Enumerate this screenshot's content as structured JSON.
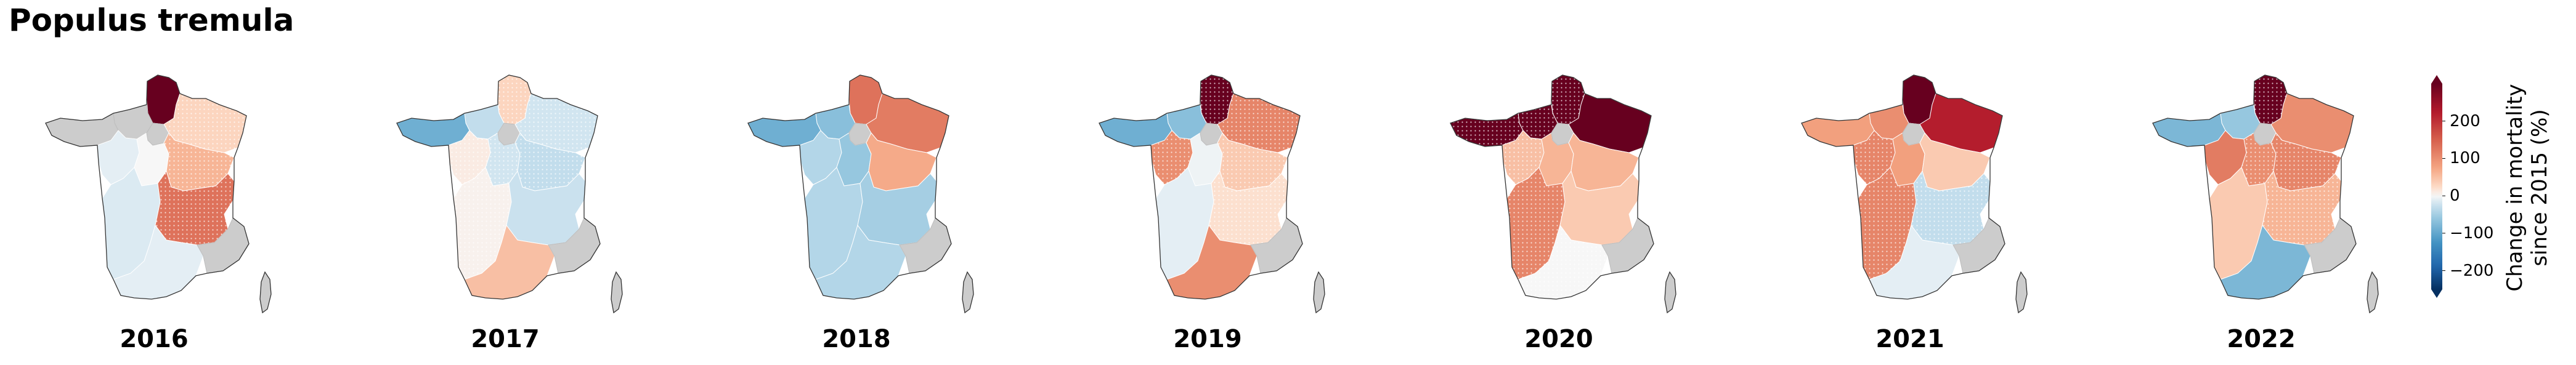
{
  "title": "Populus tremula",
  "colorscale": {
    "name": "RdBu_r",
    "label_line1": "Change in mortality",
    "label_line2": "since 2015 (%)",
    "min": -250,
    "max": 300,
    "ticks": [
      200,
      100,
      0,
      -100,
      -200
    ],
    "tick_labels": [
      "200",
      "100",
      "0",
      "−100",
      "−200"
    ],
    "extend": "both",
    "nodata_color": "#cccccc",
    "stipple_note": "dotted overlay on some regions"
  },
  "regions": [
    "NE-north",
    "North",
    "Normandy",
    "Brittany",
    "Pays de la Loire",
    "Centre",
    "Paris",
    "Grand Est",
    "Burgundy-FC",
    "Nouvelle-Aquitaine",
    "Auvergne-Rhone-Alpes",
    "Occitanie",
    "PACA",
    "Corsica"
  ],
  "maps": [
    {
      "year": "2016",
      "values": {
        "North": 300,
        "Normandy": null,
        "Brittany": null,
        "Pays de la Loire": -10,
        "Centre": 0,
        "Paris": null,
        "Grand Est": 30,
        "Burgundy-FC": 60,
        "Nouvelle-Aquitaine": -15,
        "Auvergne-Rhone-Alpes": 130,
        "Occitanie": -10,
        "PACA": null,
        "Corsica": null
      },
      "stippled": [
        "Grand Est",
        "Burgundy-FC",
        "Auvergne-Rhone-Alpes"
      ]
    },
    {
      "year": "2017",
      "values": {
        "North": 30,
        "Normandy": -30,
        "Brittany": -90,
        "Pays de la Loire": 10,
        "Centre": -20,
        "Paris": null,
        "Grand Est": -20,
        "Burgundy-FC": -30,
        "Nouvelle-Aquitaine": 5,
        "Auvergne-Rhone-Alpes": -25,
        "Occitanie": 50,
        "PACA": null,
        "Corsica": null
      },
      "stippled": [
        "North",
        "Pays de la Loire",
        "Centre",
        "Grand Est",
        "Burgundy-FC",
        "Nouvelle-Aquitaine"
      ]
    },
    {
      "year": "2018",
      "values": {
        "North": 130,
        "Normandy": -70,
        "Brittany": -90,
        "Pays de la Loire": -40,
        "Centre": -60,
        "Paris": null,
        "Grand Est": 120,
        "Burgundy-FC": 70,
        "Nouvelle-Aquitaine": -40,
        "Auvergne-Rhone-Alpes": -50,
        "Occitanie": -40,
        "PACA": null,
        "Corsica": null
      },
      "stippled": []
    },
    {
      "year": "2019",
      "values": {
        "North": 300,
        "Normandy": -70,
        "Brittany": -90,
        "Pays de la Loire": 100,
        "Centre": -5,
        "Paris": null,
        "Grand Est": 110,
        "Burgundy-FC": 40,
        "Nouvelle-Aquitaine": -10,
        "Auvergne-Rhone-Alpes": 20,
        "Occitanie": 100,
        "PACA": null,
        "Corsica": null
      },
      "stippled": [
        "North",
        "Pays de la Loire",
        "Grand Est",
        "Burgundy-FC",
        "Auvergne-Rhone-Alpes"
      ]
    },
    {
      "year": "2020",
      "values": {
        "North": 300,
        "Normandy": 300,
        "Brittany": 300,
        "Pays de la Loire": 50,
        "Centre": 60,
        "Paris": null,
        "Grand Est": 300,
        "Burgundy-FC": 60,
        "Nouvelle-Aquitaine": 110,
        "Auvergne-Rhone-Alpes": 40,
        "Occitanie": 0,
        "PACA": null,
        "Corsica": null
      },
      "stippled": [
        "North",
        "Normandy",
        "Brittany",
        "Pays de la Loire",
        "Nouvelle-Aquitaine",
        "Occitanie"
      ]
    },
    {
      "year": "2021",
      "values": {
        "North": 300,
        "Normandy": 100,
        "Brittany": 80,
        "Pays de la Loire": 110,
        "Centre": 80,
        "Paris": null,
        "Grand Est": 220,
        "Burgundy-FC": 40,
        "Nouvelle-Aquitaine": 110,
        "Auvergne-Rhone-Alpes": -30,
        "Occitanie": -10,
        "PACA": null,
        "Corsica": null
      },
      "stippled": [
        "Pays de la Loire",
        "Nouvelle-Aquitaine",
        "Auvergne-Rhone-Alpes"
      ]
    },
    {
      "year": "2022",
      "values": {
        "North": 300,
        "Normandy": -60,
        "Brittany": -80,
        "Pays de la Loire": 120,
        "Centre": 100,
        "Paris": null,
        "Grand Est": 100,
        "Burgundy-FC": 110,
        "Nouvelle-Aquitaine": 40,
        "Auvergne-Rhone-Alpes": 60,
        "Occitanie": -80,
        "PACA": null,
        "Corsica": null
      },
      "stippled": [
        "North",
        "Centre",
        "Burgundy-FC",
        "Auvergne-Rhone-Alpes"
      ]
    }
  ]
}
